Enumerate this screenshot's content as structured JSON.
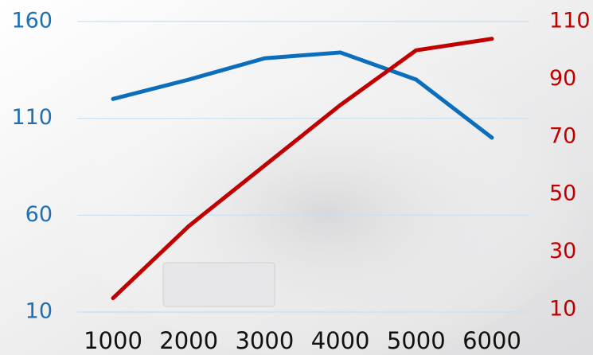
{
  "chart_data": {
    "type": "line",
    "categories": [
      "1000",
      "2000",
      "3000",
      "4000",
      "5000",
      "6000"
    ],
    "series": [
      {
        "color": "#0a6ebd",
        "values": [
          120,
          130,
          141,
          144,
          130,
          100
        ]
      },
      {
        "color": "#c00000",
        "axis": "y2",
        "values": [
          14,
          39,
          60,
          81,
          100,
          104
        ]
      }
    ],
    "ylim": [
      10,
      160
    ],
    "yticks": [
      10,
      60,
      110,
      160
    ],
    "y2lim": [
      10,
      110
    ],
    "y2ticks": [
      10,
      30,
      50,
      70,
      90,
      110
    ],
    "grid": true
  }
}
